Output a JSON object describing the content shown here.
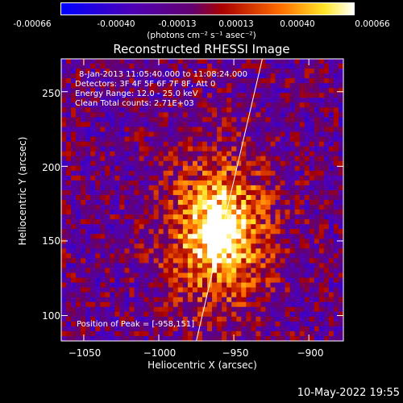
{
  "colorbar": {
    "ticks": [
      "-0.00066",
      "-0.00040",
      "-0.00013",
      "0.00013",
      "0.00040",
      "0.00066"
    ],
    "units": "(photons cm⁻² s⁻¹ asec⁻²)"
  },
  "chart_data": {
    "type": "heatmap",
    "title": "Reconstructed RHESSI Image",
    "xlabel": "Heliocentric X (arcsec)",
    "ylabel": "Heliocentric Y (arcsec)",
    "xlim": [
      -1065,
      -877
    ],
    "ylim": [
      83,
      272
    ],
    "xticks": [
      "−1050",
      "−1000",
      "−950",
      "−900"
    ],
    "yticks": [
      "100",
      "150",
      "200",
      "250"
    ],
    "clim": [
      -0.00066,
      0.00066
    ],
    "peak": [
      -958,
      151
    ],
    "source_center": [
      -962,
      158
    ],
    "limb_line": {
      "x_start": -975,
      "y_start": 83,
      "x_end": -931,
      "y_end": 272
    },
    "annotations": {
      "time": "8-Jan-2013 11:05:40.000 to 11:08:24.000",
      "detectors": "Detectors: 3F 4F 5F 6F 7F 8F, Att 0",
      "energy": "Energy Range: 12.0 - 25.0 keV",
      "clean": "Clean     Total counts: 2.71E+03",
      "peak_label": "Position of Peak = [-958,151]"
    }
  },
  "footer": {
    "timestamp": "10-May-2022 19:55"
  },
  "colors": {
    "background": "#000000",
    "limb": "#ffffff"
  }
}
